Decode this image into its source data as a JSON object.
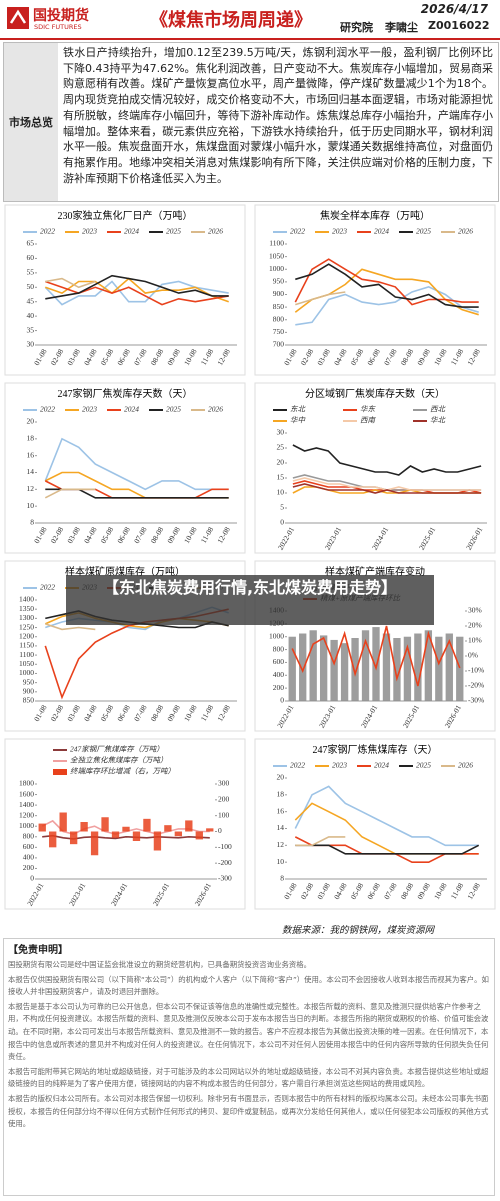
{
  "header": {
    "logo_cn": "国投期货",
    "logo_en": "SDIC FUTURES",
    "title": "《煤焦市场周周递》",
    "date": "2026/4/17",
    "dept": "研究院",
    "author": "李啸尘",
    "license": "Z0016022"
  },
  "summary": {
    "label": "市场总览",
    "text": "铁水日产持续抬升，增加0.12至239.5万吨/天，炼钢利润水平一般，盈利钢厂比例环比下降0.43持平为47.62%。焦化利润改善，日产变动不大。焦炭库存小幅增加，贸易商采购意愿稍有改善。煤矿产量恢复高位水平，周产量微降，停产煤矿数量减少1个为18个。周内现货竞拍成交情况较好，成交价格变动不大，市场回归基本面逻辑，市场对能源担忧有所脱敏，终端库存小幅回升，等待下游补库动作。炼焦煤总库存小幅抬升，产端库存小幅增加。整体来看，碳元素供应充裕，下游铁水持续抬升，低于历史同期水平，钢材利润水平一般。焦炭盘面开水，焦煤盘面对蒙煤小幅升水，蒙煤通关数据维持高位，对盘面仍有拖累作用。地缘冲突相关消息对焦煤影响有所下降，关注供应端对价格的压制力度，下游补库预期下价格逢低买入为主。"
  },
  "chart_data": [
    {
      "type": "line",
      "title": "230家独立焦化厂日产（万吨）",
      "categories": [
        "01-08",
        "02-08",
        "03-08",
        "04-08",
        "05-08",
        "06-08",
        "07-08",
        "08-08",
        "09-08",
        "10-08",
        "11-08",
        "12-08"
      ],
      "ylim": [
        30,
        65
      ],
      "yticks": [
        30,
        35,
        40,
        45,
        50,
        55,
        60,
        65
      ],
      "series": [
        {
          "name": "2022",
          "color": "#9dc3e6",
          "values": [
            50,
            44,
            47,
            47,
            52,
            45,
            45,
            51,
            52,
            50,
            49,
            48
          ]
        },
        {
          "name": "2023",
          "color": "#f5a623",
          "values": [
            50,
            48,
            52,
            52,
            48,
            53,
            48,
            49,
            49,
            50,
            47,
            45
          ]
        },
        {
          "name": "2024",
          "color": "#e8411c",
          "values": [
            52,
            50,
            48,
            50,
            48,
            50,
            47,
            44,
            46,
            45,
            46,
            47
          ]
        },
        {
          "name": "2025",
          "color": "#222222",
          "values": [
            46,
            47,
            48,
            51,
            54,
            53,
            52,
            50,
            48,
            49,
            47,
            47
          ]
        },
        {
          "name": "2026",
          "color": "#d9b98a",
          "values": [
            52,
            53,
            50,
            52,
            null,
            null,
            null,
            null,
            null,
            null,
            null,
            null
          ]
        }
      ]
    },
    {
      "type": "line",
      "title": "焦炭全样本库存（万吨）",
      "categories": [
        "01-08",
        "02-08",
        "03-08",
        "04-08",
        "05-08",
        "06-08",
        "07-08",
        "08-08",
        "09-08",
        "10-08",
        "11-08",
        "12-08"
      ],
      "ylim": [
        700,
        1100
      ],
      "yticks": [
        700,
        750,
        800,
        850,
        900,
        950,
        1000,
        1050,
        1100
      ],
      "series": [
        {
          "name": "2022",
          "color": "#9dc3e6",
          "values": [
            780,
            790,
            880,
            900,
            870,
            860,
            870,
            910,
            930,
            900,
            850,
            830
          ]
        },
        {
          "name": "2023",
          "color": "#f5a623",
          "values": [
            830,
            880,
            900,
            940,
            1000,
            980,
            960,
            960,
            950,
            880,
            840,
            820
          ]
        },
        {
          "name": "2024",
          "color": "#e8411c",
          "values": [
            870,
            1000,
            1040,
            1000,
            960,
            950,
            930,
            860,
            880,
            880,
            870,
            870
          ]
        },
        {
          "name": "2025",
          "color": "#222222",
          "values": [
            960,
            980,
            1020,
            980,
            930,
            940,
            890,
            880,
            900,
            860,
            850,
            850
          ]
        },
        {
          "name": "2026",
          "color": "#d9b98a",
          "values": [
            860,
            880,
            900,
            910,
            null,
            null,
            null,
            null,
            null,
            null,
            null,
            null
          ]
        }
      ]
    },
    {
      "type": "line",
      "title": "247家钢厂焦炭库存天数（天）",
      "categories": [
        "01-08",
        "02-08",
        "03-08",
        "04-08",
        "05-08",
        "06-08",
        "07-08",
        "08-08",
        "09-08",
        "10-08",
        "11-08",
        "12-08"
      ],
      "ylim": [
        8,
        20
      ],
      "yticks": [
        8,
        10,
        12,
        14,
        16,
        18,
        20
      ],
      "series": [
        {
          "name": "2022",
          "color": "#9dc3e6",
          "values": [
            13,
            18,
            17,
            15,
            14,
            13,
            12,
            13,
            13,
            12,
            12,
            12
          ]
        },
        {
          "name": "2023",
          "color": "#f5a623",
          "values": [
            13,
            14,
            14,
            13,
            12,
            12,
            11,
            11,
            11,
            11,
            11,
            11
          ]
        },
        {
          "name": "2024",
          "color": "#e8411c",
          "values": [
            13,
            12,
            12,
            12,
            11,
            11,
            11,
            11,
            11,
            11,
            12,
            12
          ]
        },
        {
          "name": "2025",
          "color": "#222222",
          "values": [
            12,
            12,
            12,
            11,
            11,
            11,
            11,
            11,
            11,
            11,
            11,
            11
          ]
        },
        {
          "name": "2026",
          "color": "#d9b98a",
          "values": [
            11,
            12,
            12,
            12,
            null,
            null,
            null,
            null,
            null,
            null,
            null,
            null
          ]
        }
      ]
    },
    {
      "type": "line",
      "title": "分区域钢厂焦炭库存天数（天）",
      "categories": [
        "2022-01",
        null,
        null,
        null,
        "2023-01",
        null,
        null,
        null,
        "2024-01",
        null,
        null,
        null,
        "2025-01",
        null,
        null,
        null,
        "2026-01"
      ],
      "ylim": [
        0,
        30
      ],
      "yticks": [
        0,
        5,
        10,
        15,
        20,
        25,
        30
      ],
      "series": [
        {
          "name": "东北",
          "color": "#222222",
          "values": [
            26,
            24,
            25,
            24,
            20,
            19,
            18,
            17,
            17,
            16,
            19,
            17,
            18,
            17,
            17,
            18,
            19
          ]
        },
        {
          "name": "华东",
          "color": "#e8411c",
          "values": [
            13,
            14,
            13,
            12,
            12,
            12,
            11,
            11,
            11,
            11,
            11,
            11,
            10,
            10,
            10,
            11,
            10
          ]
        },
        {
          "name": "西北",
          "color": "#999999",
          "values": [
            15,
            16,
            15,
            14,
            14,
            13,
            12,
            12,
            11,
            11,
            11,
            11,
            11,
            11,
            11,
            11,
            11
          ]
        },
        {
          "name": "华中",
          "color": "#f5a623",
          "values": [
            10,
            12,
            12,
            11,
            10,
            10,
            10,
            11,
            10,
            10,
            11,
            10,
            10,
            10,
            10,
            10,
            10
          ]
        },
        {
          "name": "西南",
          "color": "#f4c9a8",
          "values": [
            14,
            15,
            14,
            13,
            13,
            12,
            12,
            12,
            11,
            12,
            11,
            11,
            11,
            11,
            11,
            11,
            11
          ]
        },
        {
          "name": "华北",
          "color": "#a0322a",
          "values": [
            12,
            13,
            12,
            11,
            11,
            11,
            11,
            10,
            11,
            10,
            10,
            10,
            10,
            10,
            10,
            10,
            10
          ]
        }
      ]
    },
    {
      "type": "line",
      "title": "样本煤矿原煤库存（万吨）",
      "categories": [
        "01-08",
        "02-08",
        "03-08",
        "04-08",
        "05-08",
        "06-08",
        "07-08",
        "08-08",
        "09-08",
        "10-08",
        "11-08",
        "12-08"
      ],
      "ylim": [
        850,
        1400
      ],
      "yticks": [
        850,
        900,
        950,
        1000,
        1050,
        1100,
        1150,
        1200,
        1250,
        1300,
        1350,
        1400
      ],
      "series": [
        {
          "name": "2022",
          "color": "#9dc3e6",
          "values": [
            1250,
            1280,
            1300,
            1290,
            1280,
            1250,
            1240,
            1290,
            1300,
            1330,
            1360,
            1330
          ]
        },
        {
          "name": "2023",
          "color": "#f5a623",
          "values": [
            1270,
            1310,
            1330,
            1300,
            1280,
            1260,
            1250,
            1280,
            1300,
            1290,
            1280,
            1260
          ]
        },
        {
          "name": "2024",
          "color": "#e8411c",
          "values": [
            1150,
            870,
            1080,
            1170,
            1220,
            1260,
            1280,
            1290,
            1300,
            1310,
            1330,
            1350
          ]
        },
        {
          "name": "2025",
          "color": "#222222",
          "values": [
            1300,
            1320,
            1340,
            1310,
            1290,
            1280,
            1270,
            1260,
            1250,
            1250,
            1280,
            1260
          ]
        },
        {
          "name": "2026",
          "color": "#d9b98a",
          "values": [
            1270,
            1240,
            1250,
            1240,
            null,
            null,
            null,
            null,
            null,
            null,
            null,
            null
          ]
        }
      ]
    },
    {
      "type": "combo",
      "title": "样本煤矿产端库存变动",
      "categories": [
        "2022-01",
        null,
        null,
        null,
        "2023-01",
        null,
        null,
        null,
        "2024-01",
        null,
        null,
        null,
        "2025-01",
        null,
        null,
        null,
        "2026-01"
      ],
      "ylim": [
        0,
        1400
      ],
      "yticks": [
        0,
        200,
        400,
        600,
        800,
        1000,
        1200,
        1400
      ],
      "y2lim": [
        -30,
        30
      ],
      "y2ticks": [
        {
          "value": -30,
          "label": "-30%"
        },
        {
          "value": -20,
          "label": "-20%"
        },
        {
          "value": -10,
          "label": "-10%"
        },
        {
          "value": 0,
          "label": "0%"
        },
        {
          "value": 10,
          "label": "10%"
        },
        {
          "value": 20,
          "label": "20%"
        },
        {
          "value": 30,
          "label": "30%"
        }
      ],
      "series": [
        {
          "name": "原煤库存",
          "type": "bar",
          "color": "#8c8c8c",
          "values": [
            1000,
            1050,
            1100,
            1020,
            950,
            900,
            980,
            1100,
            1150,
            1050,
            980,
            1000,
            1050,
            1100,
            1000,
            1050,
            1000
          ]
        },
        {
          "name": "精煤+原煤产端库存环比",
          "axis": "y2",
          "color": "#e8411c",
          "values": [
            5,
            -10,
            8,
            12,
            -5,
            15,
            -12,
            10,
            -8,
            20,
            -15,
            6,
            -20,
            15,
            -5,
            10,
            -8
          ]
        }
      ]
    },
    {
      "type": "combo",
      "categories": [
        "2022-01",
        null,
        null,
        null,
        "2023-01",
        null,
        null,
        null,
        "2024-01",
        null,
        null,
        null,
        "2025-01",
        null,
        null,
        null,
        "2026-01"
      ],
      "ylim": [
        0,
        1800
      ],
      "yticks": [
        0,
        200,
        400,
        600,
        800,
        1000,
        1200,
        1400,
        1600,
        1800
      ],
      "y2lim": [
        -300,
        300
      ],
      "y2ticks": [
        -300,
        -200,
        -100,
        0,
        100,
        200,
        300
      ],
      "series": [
        {
          "name": "247家钢厂焦煤库存（万吨）",
          "color": "#8b3a3a",
          "values": [
            800,
            820,
            780,
            760,
            790,
            800,
            780,
            770,
            800,
            790,
            780,
            800,
            790,
            780,
            800,
            790,
            780
          ]
        },
        {
          "name": "全独立焦化焦煤库存（万吨）",
          "color": "#f0a0a0",
          "values": [
            1000,
            1100,
            900,
            850,
            950,
            1000,
            900,
            850,
            900,
            950,
            900,
            850,
            900,
            950,
            950,
            900,
            900
          ]
        },
        {
          "name": "终端库存环比增减（右，万吨）",
          "type": "bar",
          "axis": "y2",
          "color": "#e8411c",
          "values": [
            50,
            -100,
            120,
            -80,
            60,
            -150,
            90,
            -40,
            30,
            -60,
            80,
            -120,
            40,
            -30,
            70,
            -50,
            20
          ]
        }
      ]
    },
    {
      "type": "line",
      "title": "247家钢厂炼焦煤库存（天）",
      "categories": [
        "01-08",
        "02-08",
        "03-08",
        "04-08",
        "05-08",
        "06-08",
        "07-08",
        "08-08",
        "09-08",
        "10-08",
        "11-08",
        "12-08"
      ],
      "ylim": [
        8,
        20
      ],
      "yticks": [
        8,
        10,
        12,
        14,
        16,
        18,
        20
      ],
      "series": [
        {
          "name": "2022",
          "color": "#9dc3e6",
          "values": [
            14,
            18,
            19,
            17,
            16,
            15,
            14,
            13,
            13,
            12,
            12,
            12
          ]
        },
        {
          "name": "2023",
          "color": "#f5a623",
          "values": [
            15,
            17,
            16,
            15,
            13,
            12,
            11,
            11,
            11,
            11,
            11,
            11
          ]
        },
        {
          "name": "2024",
          "color": "#e8411c",
          "values": [
            13,
            12,
            12,
            12,
            11,
            11,
            11,
            10,
            10,
            11,
            11,
            11
          ]
        },
        {
          "name": "2025",
          "color": "#222222",
          "values": [
            12,
            12,
            12,
            11,
            11,
            11,
            11,
            11,
            11,
            11,
            11,
            12
          ]
        },
        {
          "name": "2026",
          "color": "#d9b98a",
          "values": [
            12,
            12,
            13,
            13,
            null,
            null,
            null,
            null,
            null,
            null,
            null,
            null
          ]
        }
      ]
    }
  ],
  "overlay": {
    "text": "【东北焦炭费用行情,东北煤炭费用走势】"
  },
  "source": "数据来源：我的钢铁网，煤炭资源网",
  "disclaimer": {
    "title": "【免责申明】",
    "paragraphs": [
      "国投期货有限公司是经中国证监会批准设立的期货经营机构，已具备期货投资咨询业务资格。",
      "本报告仅供国投期货有限公司（以下简称“本公司”）的机构或个人客户（以下简称“客户”）使用。本公司不会因接收人收到本报告而视其为客户。如接收人并非国投期货客户，请及时退回并删除。",
      "本报告是基于本公司认为可靠的已公开信息，但本公司不保证该等信息的准确性或完整性。本报告所载的资料、意见及推测只提供给客户作参考之用，不构成任何投资建议。本报告所载的资料、意见及推测仅反映本公司于发布本报告当日的判断。本报告所指的期货或期权的价格、价值可能会波动。在不同时期，本公司可发出与本报告所载资料、意见及推测不一致的报告。客户不应视本报告为其做出投资决策的唯一因素。在任何情况下，本报告中的信息或所表述的意见并不构成对任何人的投资建议。在任何情况下，本公司不对任何人因使用本报告中的任何内容所导致的任何损失负任何责任。",
      "本报告可能附带其它网站的地址或超级链接，对于可能涉及的本公司网站以外的地址或超级链接，本公司不对其内容负责。本报告提供这些地址或超级链接的目的纯粹是为了客户使用方便，链接网站的内容不构成本报告的任何部分，客户需自行承担浏览这些网站的费用或风险。",
      "本报告的版权归本公司所有。本公司对本报告保留一切权利。除非另有书面显示，否则本报告中的所有材料的版权均属本公司。未经本公司事先书面授权，本报告的任何部分均不得以任何方式制作任何形式的拷贝、复印件或复制品，或再次分发给任何其他人，或以任何侵犯本公司版权的其他方式使用。"
    ]
  }
}
